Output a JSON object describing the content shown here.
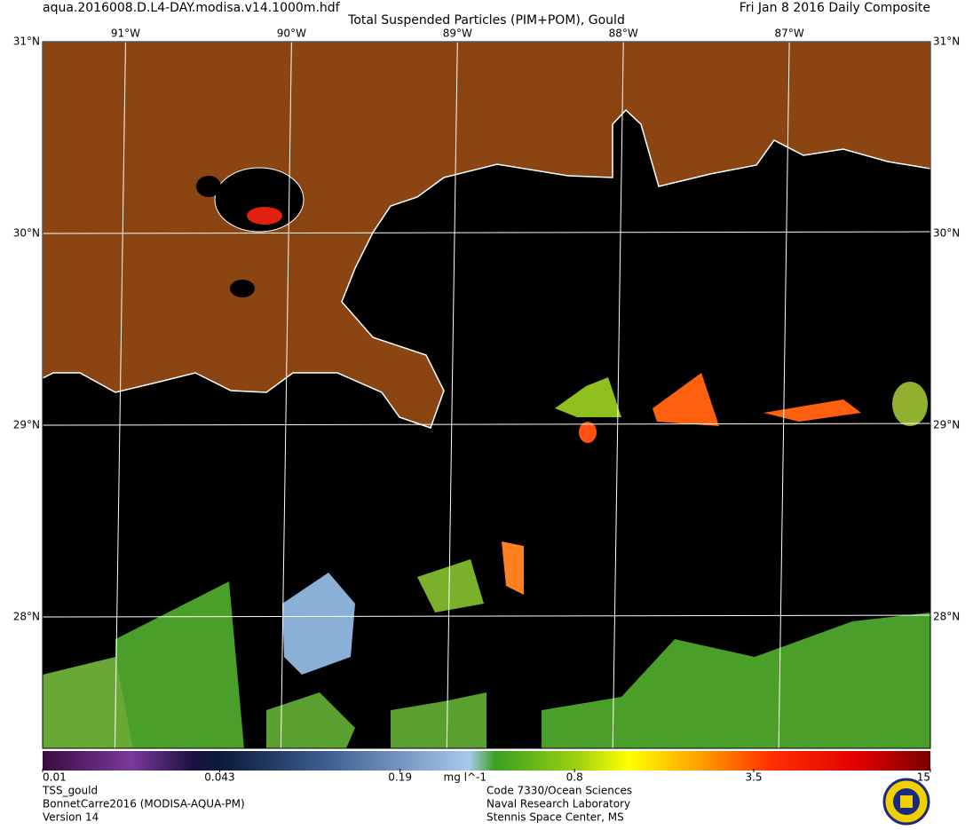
{
  "header": {
    "file": "aqua.2016008.D.L4-DAY.modisa.v14.1000m.hdf",
    "title": "Total Suspended Particles (PIM+POM), Gould",
    "date": "Fri Jan  8 2016 Daily Composite"
  },
  "map": {
    "lon_range": [
      -91.5,
      -86.15
    ],
    "lat_range": [
      27.315,
      31
    ],
    "longitudes": [
      {
        "value": -91,
        "label": "91°W"
      },
      {
        "value": -90,
        "label": "90°W"
      },
      {
        "value": -89,
        "label": "89°W"
      },
      {
        "value": -88,
        "label": "88°W"
      },
      {
        "value": -87,
        "label": "87°W"
      }
    ],
    "latitudes": [
      {
        "value": 31,
        "label": "31°N"
      },
      {
        "value": 30,
        "label": "30°N"
      },
      {
        "value": 29,
        "label": "29°N"
      },
      {
        "value": 28,
        "label": "28°N"
      }
    ]
  },
  "colorbar": {
    "range": [
      0.01,
      15
    ],
    "log": true,
    "ticks": [
      0.01,
      0.043,
      0.19,
      0.8,
      3.5,
      15
    ],
    "unit": "mg l^-1"
  },
  "footer": {
    "left": [
      "TSS_gould",
      "BonnetCarre2016 (MODISA-AQUA-PM)",
      "Version 14"
    ],
    "right": [
      "Code 7330/Ocean Sciences",
      "Naval Research Laboratory",
      "Stennis Space Center, MS"
    ]
  }
}
